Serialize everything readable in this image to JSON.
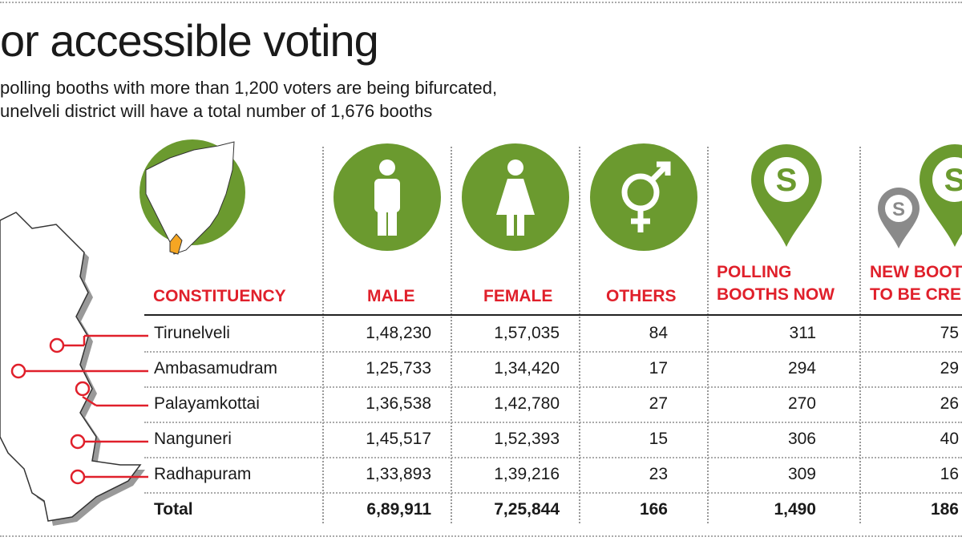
{
  "title": "or accessible voting",
  "subtitle_lines": [
    "polling booths with more than 1,200 voters are being bifurcated,",
    "unelveli district will have a total number of 1,676 booths"
  ],
  "colors": {
    "accent": "#e0202b",
    "green": "#6b9a2f",
    "gray": "#8a8a8a",
    "highlight": "#f5a623"
  },
  "headers": {
    "constituency": "CONSTITUENCY",
    "male": "MALE",
    "female": "FEMALE",
    "others": "OTHERS",
    "now_1": "POLLING",
    "now_2": "BOOTHS NOW",
    "new_1": "NEW BOOT",
    "new_2": "TO BE CRE"
  },
  "rows": [
    {
      "name": "Tirunelveli",
      "male": "1,48,230",
      "female": "1,57,035",
      "others": "84",
      "now": "311",
      "new": "75"
    },
    {
      "name": "Ambasamudram",
      "male": "1,25,733",
      "female": "1,34,420",
      "others": "17",
      "now": "294",
      "new": "29"
    },
    {
      "name": "Palayamkottai",
      "male": "1,36,538",
      "female": "1,42,780",
      "others": "27",
      "now": "270",
      "new": "26"
    },
    {
      "name": "Nanguneri",
      "male": "1,45,517",
      "female": "1,52,393",
      "others": "15",
      "now": "306",
      "new": "40"
    },
    {
      "name": "Radhapuram",
      "male": "1,33,893",
      "female": "1,39,216",
      "others": "23",
      "now": "309",
      "new": "16"
    }
  ],
  "total": {
    "name": "Total",
    "male": "6,89,911",
    "female": "7,25,844",
    "others": "166",
    "now": "1,490",
    "new": "186"
  },
  "chart_data": {
    "type": "table",
    "columns": [
      "CONSTITUENCY",
      "MALE",
      "FEMALE",
      "OTHERS",
      "POLLING BOOTHS NOW",
      "NEW BOOT… TO BE CRE…"
    ],
    "rows": [
      [
        "Tirunelveli",
        "1,48,230",
        "1,57,035",
        "84",
        "311",
        "75"
      ],
      [
        "Ambasamudram",
        "1,25,733",
        "1,34,420",
        "17",
        "294",
        "29"
      ],
      [
        "Palayamkottai",
        "1,36,538",
        "1,42,780",
        "27",
        "270",
        "26"
      ],
      [
        "Nanguneri",
        "1,45,517",
        "1,52,393",
        "15",
        "306",
        "40"
      ],
      [
        "Radhapuram",
        "1,33,893",
        "1,39,216",
        "23",
        "309",
        "16"
      ],
      [
        "Total",
        "6,89,911",
        "7,25,844",
        "166",
        "1,490",
        "186"
      ]
    ]
  }
}
